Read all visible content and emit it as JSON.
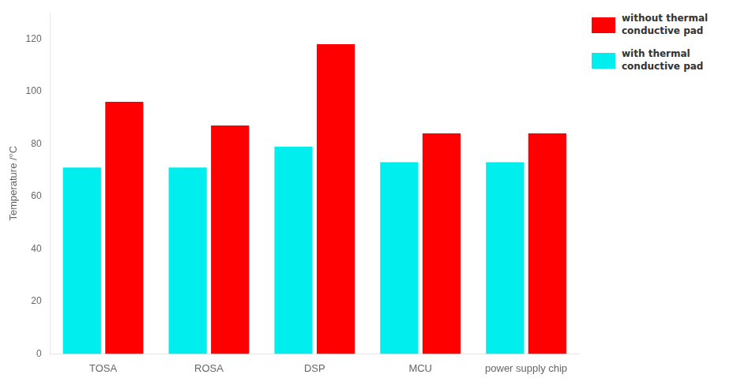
{
  "chart_data": {
    "type": "bar",
    "categories": [
      "TOSA",
      "ROSA",
      "DSP",
      "MCU",
      "power supply chip"
    ],
    "series": [
      {
        "name": "with thermal\nconductive pad",
        "color": "#00eeee",
        "values": [
          71,
          71,
          79,
          73,
          73
        ]
      },
      {
        "name": "without thermal\nconductive pad",
        "color": "#ff0000",
        "values": [
          96,
          87,
          118,
          84,
          84
        ]
      }
    ],
    "ylabel": "Temperature /°C",
    "ylim": [
      0,
      130
    ],
    "yticks": [
      0,
      20,
      40,
      60,
      80,
      100,
      120
    ],
    "grid": false,
    "legend": "upper right"
  }
}
